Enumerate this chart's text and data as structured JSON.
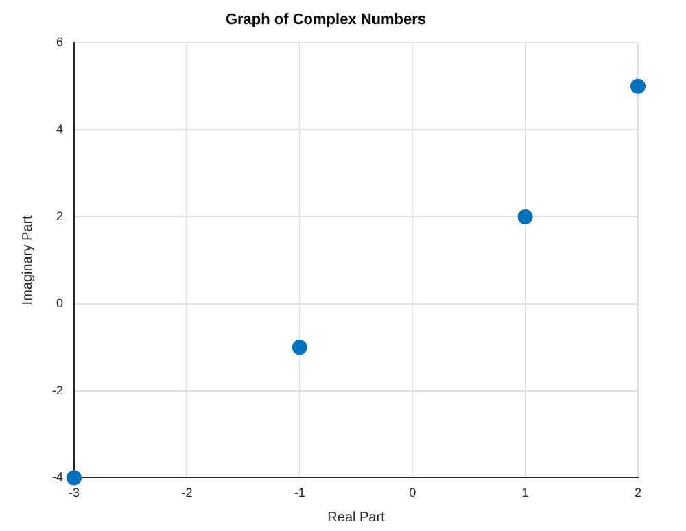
{
  "chart_data": {
    "type": "scatter",
    "title": "Graph of Complex Numbers",
    "xlabel": "Real Part",
    "ylabel": "Imaginary Part",
    "x": [
      -3,
      -1,
      1,
      2
    ],
    "series": [
      {
        "color": "#0072bd",
        "values": [
          -4,
          -1,
          2,
          5
        ]
      }
    ],
    "xlim": [
      -3,
      2
    ],
    "xticks": [
      -3,
      -2,
      -1,
      0,
      1,
      2
    ],
    "ylim": [
      -4,
      6
    ],
    "yticks": [
      -4,
      -2,
      0,
      2,
      4,
      6
    ],
    "grid": true,
    "marker": "circle"
  }
}
